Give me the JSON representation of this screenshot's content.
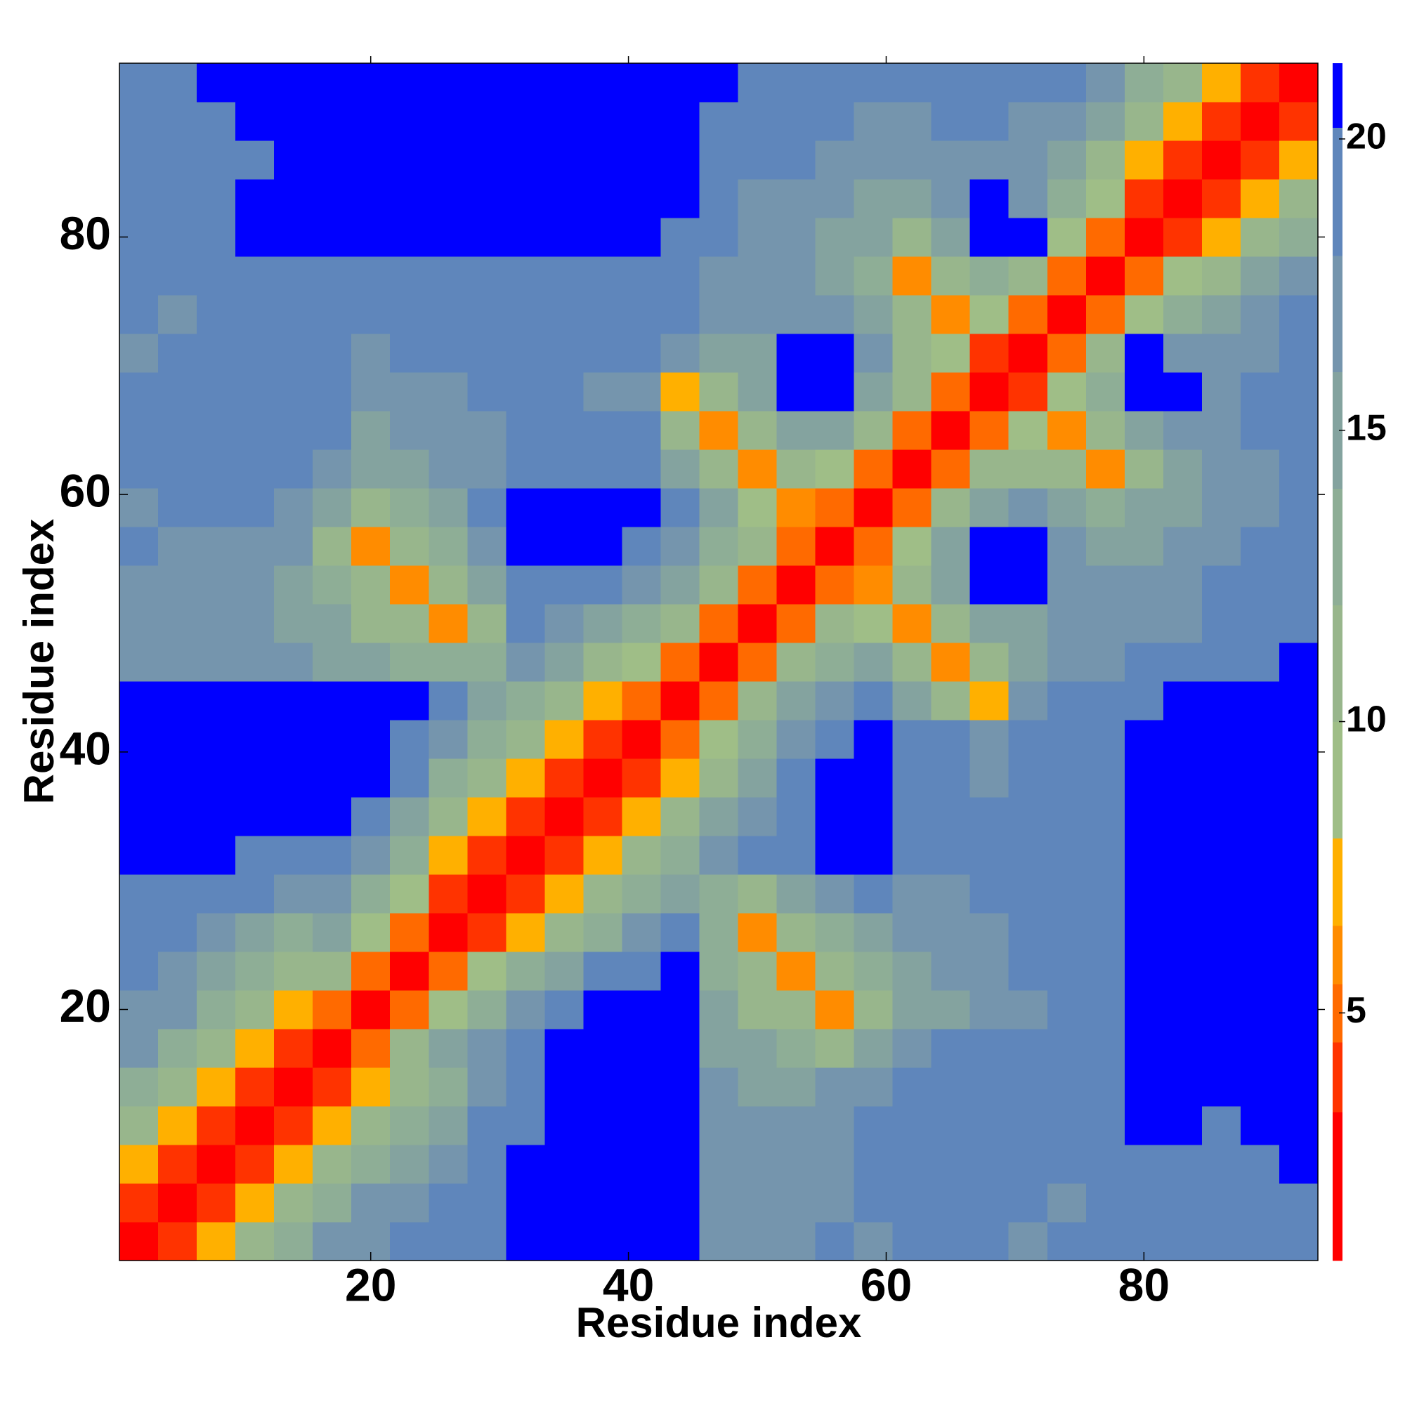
{
  "chart_data": {
    "type": "heatmap",
    "xlabel": "Residue index",
    "ylabel": "Residue index",
    "x_edges": [
      0.5,
      3.5,
      6.5,
      9.5,
      12.5,
      15.5,
      18.5,
      21.5,
      24.5,
      27.5,
      30.5,
      33.5,
      36.5,
      39.5,
      42.5,
      45.5,
      48.5,
      51.5,
      54.5,
      57.5,
      60.5,
      63.5,
      66.5,
      69.5,
      72.5,
      75.5,
      78.5,
      81.5,
      84.5,
      87.5,
      90.5,
      93.5
    ],
    "y_edges": [
      0.5,
      3.5,
      6.5,
      9.5,
      12.5,
      15.5,
      18.5,
      21.5,
      24.5,
      27.5,
      30.5,
      33.5,
      36.5,
      39.5,
      42.5,
      45.5,
      48.5,
      51.5,
      54.5,
      57.5,
      60.5,
      63.5,
      66.5,
      69.5,
      72.5,
      75.5,
      78.5,
      81.5,
      84.5,
      87.5,
      90.5,
      93.5
    ],
    "xlim": [
      0.5,
      93.5
    ],
    "ylim": [
      0.5,
      93.5
    ],
    "xticks": [
      20,
      40,
      60,
      80
    ],
    "yticks": [
      20,
      40,
      60,
      80
    ],
    "z": [
      [
        2,
        4,
        7,
        10,
        13,
        16,
        17,
        18,
        19,
        20,
        21,
        21,
        21,
        21,
        21,
        17,
        16,
        17,
        18,
        17,
        18,
        19,
        18,
        17,
        18,
        19,
        20,
        19,
        20,
        19,
        20
      ],
      [
        4,
        2,
        4,
        7,
        10,
        13,
        16,
        17,
        18,
        19,
        21,
        21,
        21,
        21,
        21,
        16,
        17,
        16,
        17,
        18,
        18,
        18,
        19,
        18,
        17,
        18,
        19,
        19,
        19,
        20,
        19
      ],
      [
        7,
        4,
        2,
        4,
        7,
        10,
        12,
        15,
        17,
        19,
        21,
        21,
        21,
        21,
        21,
        17,
        16,
        16,
        17,
        18,
        19,
        18,
        18,
        19,
        18,
        18,
        19,
        20,
        19,
        20,
        21
      ],
      [
        10,
        7,
        4,
        2,
        4,
        7,
        10,
        12,
        15,
        18,
        20,
        21,
        21,
        21,
        21,
        17,
        17,
        16,
        17,
        18,
        19,
        19,
        20,
        19,
        18,
        19,
        21,
        21,
        20,
        21,
        21
      ],
      [
        13,
        10,
        7,
        4,
        2,
        4,
        7,
        10,
        13,
        16,
        19,
        21,
        21,
        21,
        21,
        16,
        15,
        15,
        16,
        17,
        18,
        19,
        19,
        20,
        19,
        19,
        21,
        21,
        21,
        21,
        21
      ],
      [
        16,
        13,
        10,
        7,
        4,
        2,
        5,
        10,
        14,
        17,
        20,
        21,
        21,
        21,
        21,
        15,
        14,
        13,
        11,
        15,
        17,
        18,
        19,
        19,
        20,
        19,
        21,
        21,
        21,
        21,
        21
      ],
      [
        17,
        16,
        12,
        10,
        7,
        5,
        2,
        5,
        9,
        13,
        16,
        19,
        21,
        21,
        21,
        14,
        11,
        10,
        6,
        11,
        15,
        15,
        17,
        17,
        18,
        18,
        21,
        21,
        21,
        21,
        21
      ],
      [
        18,
        17,
        15,
        12,
        10,
        10,
        5,
        2,
        5,
        9,
        12,
        15,
        18,
        20,
        21,
        13,
        10,
        6,
        11,
        13,
        15,
        16,
        17,
        18,
        18,
        19,
        21,
        21,
        21,
        21,
        21
      ],
      [
        19,
        18,
        17,
        15,
        13,
        14,
        9,
        5,
        2,
        4,
        7,
        10,
        13,
        16,
        18,
        12,
        6,
        11,
        13,
        15,
        16,
        16,
        17,
        18,
        19,
        19,
        21,
        21,
        21,
        21,
        21
      ],
      [
        20,
        19,
        19,
        18,
        16,
        17,
        13,
        9,
        4,
        2,
        4,
        7,
        10,
        13,
        15,
        13,
        11,
        14,
        16,
        18,
        17,
        17,
        18,
        18,
        19,
        20,
        21,
        21,
        21,
        21,
        21
      ],
      [
        21,
        21,
        21,
        20,
        19,
        20,
        16,
        12,
        7,
        4,
        2,
        4,
        7,
        10,
        13,
        16,
        18,
        20,
        21,
        21,
        19,
        18,
        18,
        19,
        19,
        20,
        21,
        21,
        21,
        21,
        21
      ],
      [
        21,
        21,
        21,
        21,
        21,
        21,
        19,
        15,
        10,
        7,
        4,
        2,
        4,
        7,
        10,
        14,
        17,
        20,
        21,
        21,
        19,
        18,
        18,
        18,
        19,
        20,
        21,
        21,
        21,
        21,
        21
      ],
      [
        21,
        21,
        21,
        21,
        21,
        21,
        21,
        18,
        13,
        10,
        7,
        4,
        2,
        4,
        7,
        11,
        15,
        18,
        21,
        21,
        19,
        18,
        17,
        18,
        19,
        20,
        21,
        21,
        21,
        21,
        21
      ],
      [
        21,
        21,
        21,
        21,
        21,
        21,
        21,
        20,
        16,
        13,
        10,
        7,
        4,
        2,
        5,
        9,
        13,
        17,
        20,
        21,
        20,
        18,
        17,
        18,
        18,
        20,
        21,
        21,
        21,
        21,
        21
      ],
      [
        21,
        21,
        21,
        21,
        21,
        21,
        21,
        21,
        18,
        15,
        13,
        10,
        7,
        5,
        2,
        5,
        10,
        14,
        17,
        18,
        15,
        10,
        7,
        17,
        18,
        19,
        20,
        21,
        21,
        21,
        21
      ],
      [
        17,
        16,
        17,
        17,
        16,
        15,
        14,
        13,
        12,
        13,
        16,
        14,
        11,
        9,
        5,
        2,
        5,
        10,
        13,
        14,
        10,
        6,
        10,
        15,
        16,
        17,
        18,
        19,
        19,
        20,
        21
      ],
      [
        16,
        17,
        16,
        17,
        15,
        14,
        11,
        10,
        6,
        11,
        18,
        17,
        15,
        13,
        10,
        5,
        2,
        5,
        10,
        9,
        6,
        10,
        14,
        15,
        16,
        16,
        17,
        17,
        18,
        19,
        20
      ],
      [
        17,
        16,
        16,
        16,
        15,
        13,
        10,
        6,
        11,
        14,
        20,
        20,
        18,
        17,
        14,
        10,
        5,
        2,
        5,
        6,
        10,
        14,
        21,
        21,
        17,
        16,
        16,
        17,
        18,
        18,
        19
      ],
      [
        18,
        17,
        17,
        17,
        16,
        11,
        6,
        11,
        13,
        16,
        21,
        21,
        21,
        20,
        17,
        13,
        10,
        5,
        2,
        5,
        9,
        14,
        21,
        21,
        17,
        15,
        15,
        16,
        17,
        18,
        19
      ],
      [
        17,
        18,
        18,
        18,
        17,
        15,
        11,
        13,
        15,
        18,
        21,
        21,
        21,
        21,
        18,
        14,
        9,
        6,
        5,
        2,
        5,
        10,
        14,
        17,
        15,
        12,
        14,
        15,
        16,
        17,
        18
      ],
      [
        18,
        18,
        19,
        19,
        18,
        17,
        15,
        15,
        16,
        17,
        19,
        19,
        19,
        20,
        15,
        10,
        6,
        10,
        9,
        5,
        2,
        5,
        10,
        11,
        10,
        6,
        11,
        15,
        16,
        17,
        18
      ],
      [
        19,
        18,
        18,
        19,
        19,
        18,
        15,
        16,
        16,
        17,
        18,
        18,
        18,
        18,
        10,
        6,
        10,
        14,
        14,
        10,
        5,
        2,
        5,
        9,
        6,
        10,
        15,
        16,
        17,
        18,
        19
      ],
      [
        18,
        19,
        18,
        20,
        19,
        19,
        17,
        17,
        17,
        18,
        18,
        18,
        17,
        17,
        7,
        10,
        14,
        21,
        21,
        14,
        10,
        5,
        2,
        4,
        9,
        13,
        21,
        21,
        17,
        18,
        19
      ],
      [
        17,
        18,
        19,
        19,
        20,
        19,
        17,
        18,
        18,
        18,
        19,
        18,
        18,
        18,
        17,
        15,
        15,
        21,
        21,
        17,
        11,
        9,
        4,
        2,
        5,
        10,
        21,
        16,
        16,
        17,
        18
      ],
      [
        18,
        17,
        18,
        18,
        19,
        20,
        18,
        18,
        19,
        19,
        19,
        19,
        19,
        18,
        18,
        16,
        16,
        17,
        17,
        15,
        10,
        6,
        9,
        5,
        2,
        5,
        9,
        13,
        15,
        17,
        18
      ],
      [
        19,
        18,
        18,
        19,
        19,
        19,
        18,
        19,
        19,
        20,
        20,
        20,
        20,
        20,
        19,
        17,
        16,
        16,
        15,
        12,
        6,
        10,
        13,
        10,
        5,
        2,
        5,
        8,
        11,
        14,
        16
      ],
      [
        20,
        19,
        19,
        21,
        21,
        21,
        21,
        21,
        21,
        21,
        21,
        21,
        21,
        21,
        20,
        18,
        17,
        16,
        15,
        14,
        11,
        15,
        21,
        21,
        9,
        5,
        2,
        4,
        7,
        10,
        13
      ],
      [
        19,
        19,
        20,
        21,
        21,
        21,
        21,
        21,
        21,
        21,
        21,
        21,
        21,
        21,
        21,
        19,
        17,
        17,
        16,
        15,
        15,
        16,
        21,
        16,
        13,
        8,
        4,
        2,
        4,
        7,
        10
      ],
      [
        20,
        19,
        19,
        20,
        21,
        21,
        21,
        21,
        21,
        21,
        21,
        21,
        21,
        21,
        21,
        19,
        18,
        18,
        17,
        16,
        16,
        17,
        17,
        16,
        15,
        11,
        7,
        4,
        2,
        4,
        7
      ],
      [
        19,
        20,
        20,
        21,
        21,
        21,
        21,
        21,
        21,
        21,
        21,
        21,
        21,
        21,
        21,
        20,
        19,
        18,
        18,
        17,
        17,
        18,
        18,
        17,
        17,
        14,
        10,
        7,
        4,
        2,
        4
      ],
      [
        20,
        19,
        21,
        21,
        21,
        21,
        21,
        21,
        21,
        21,
        21,
        21,
        21,
        21,
        21,
        21,
        20,
        19,
        19,
        18,
        18,
        19,
        19,
        18,
        18,
        16,
        13,
        10,
        7,
        4,
        2
      ]
    ],
    "colorbar": {
      "levels": [
        0.75,
        3.3,
        4.5,
        5.5,
        6.5,
        8,
        10,
        12,
        14,
        16,
        18,
        20.2,
        21.3
      ],
      "colors": [
        "#ff0000",
        "#ff3300",
        "#ff6a00",
        "#ff8c00",
        "#ffb000",
        "#9fbe87",
        "#98b68c",
        "#8eae96",
        "#84a39f",
        "#7595ad",
        "#5f86bb",
        "#0000ff"
      ],
      "ticks": [
        5,
        10,
        15,
        20
      ]
    }
  }
}
